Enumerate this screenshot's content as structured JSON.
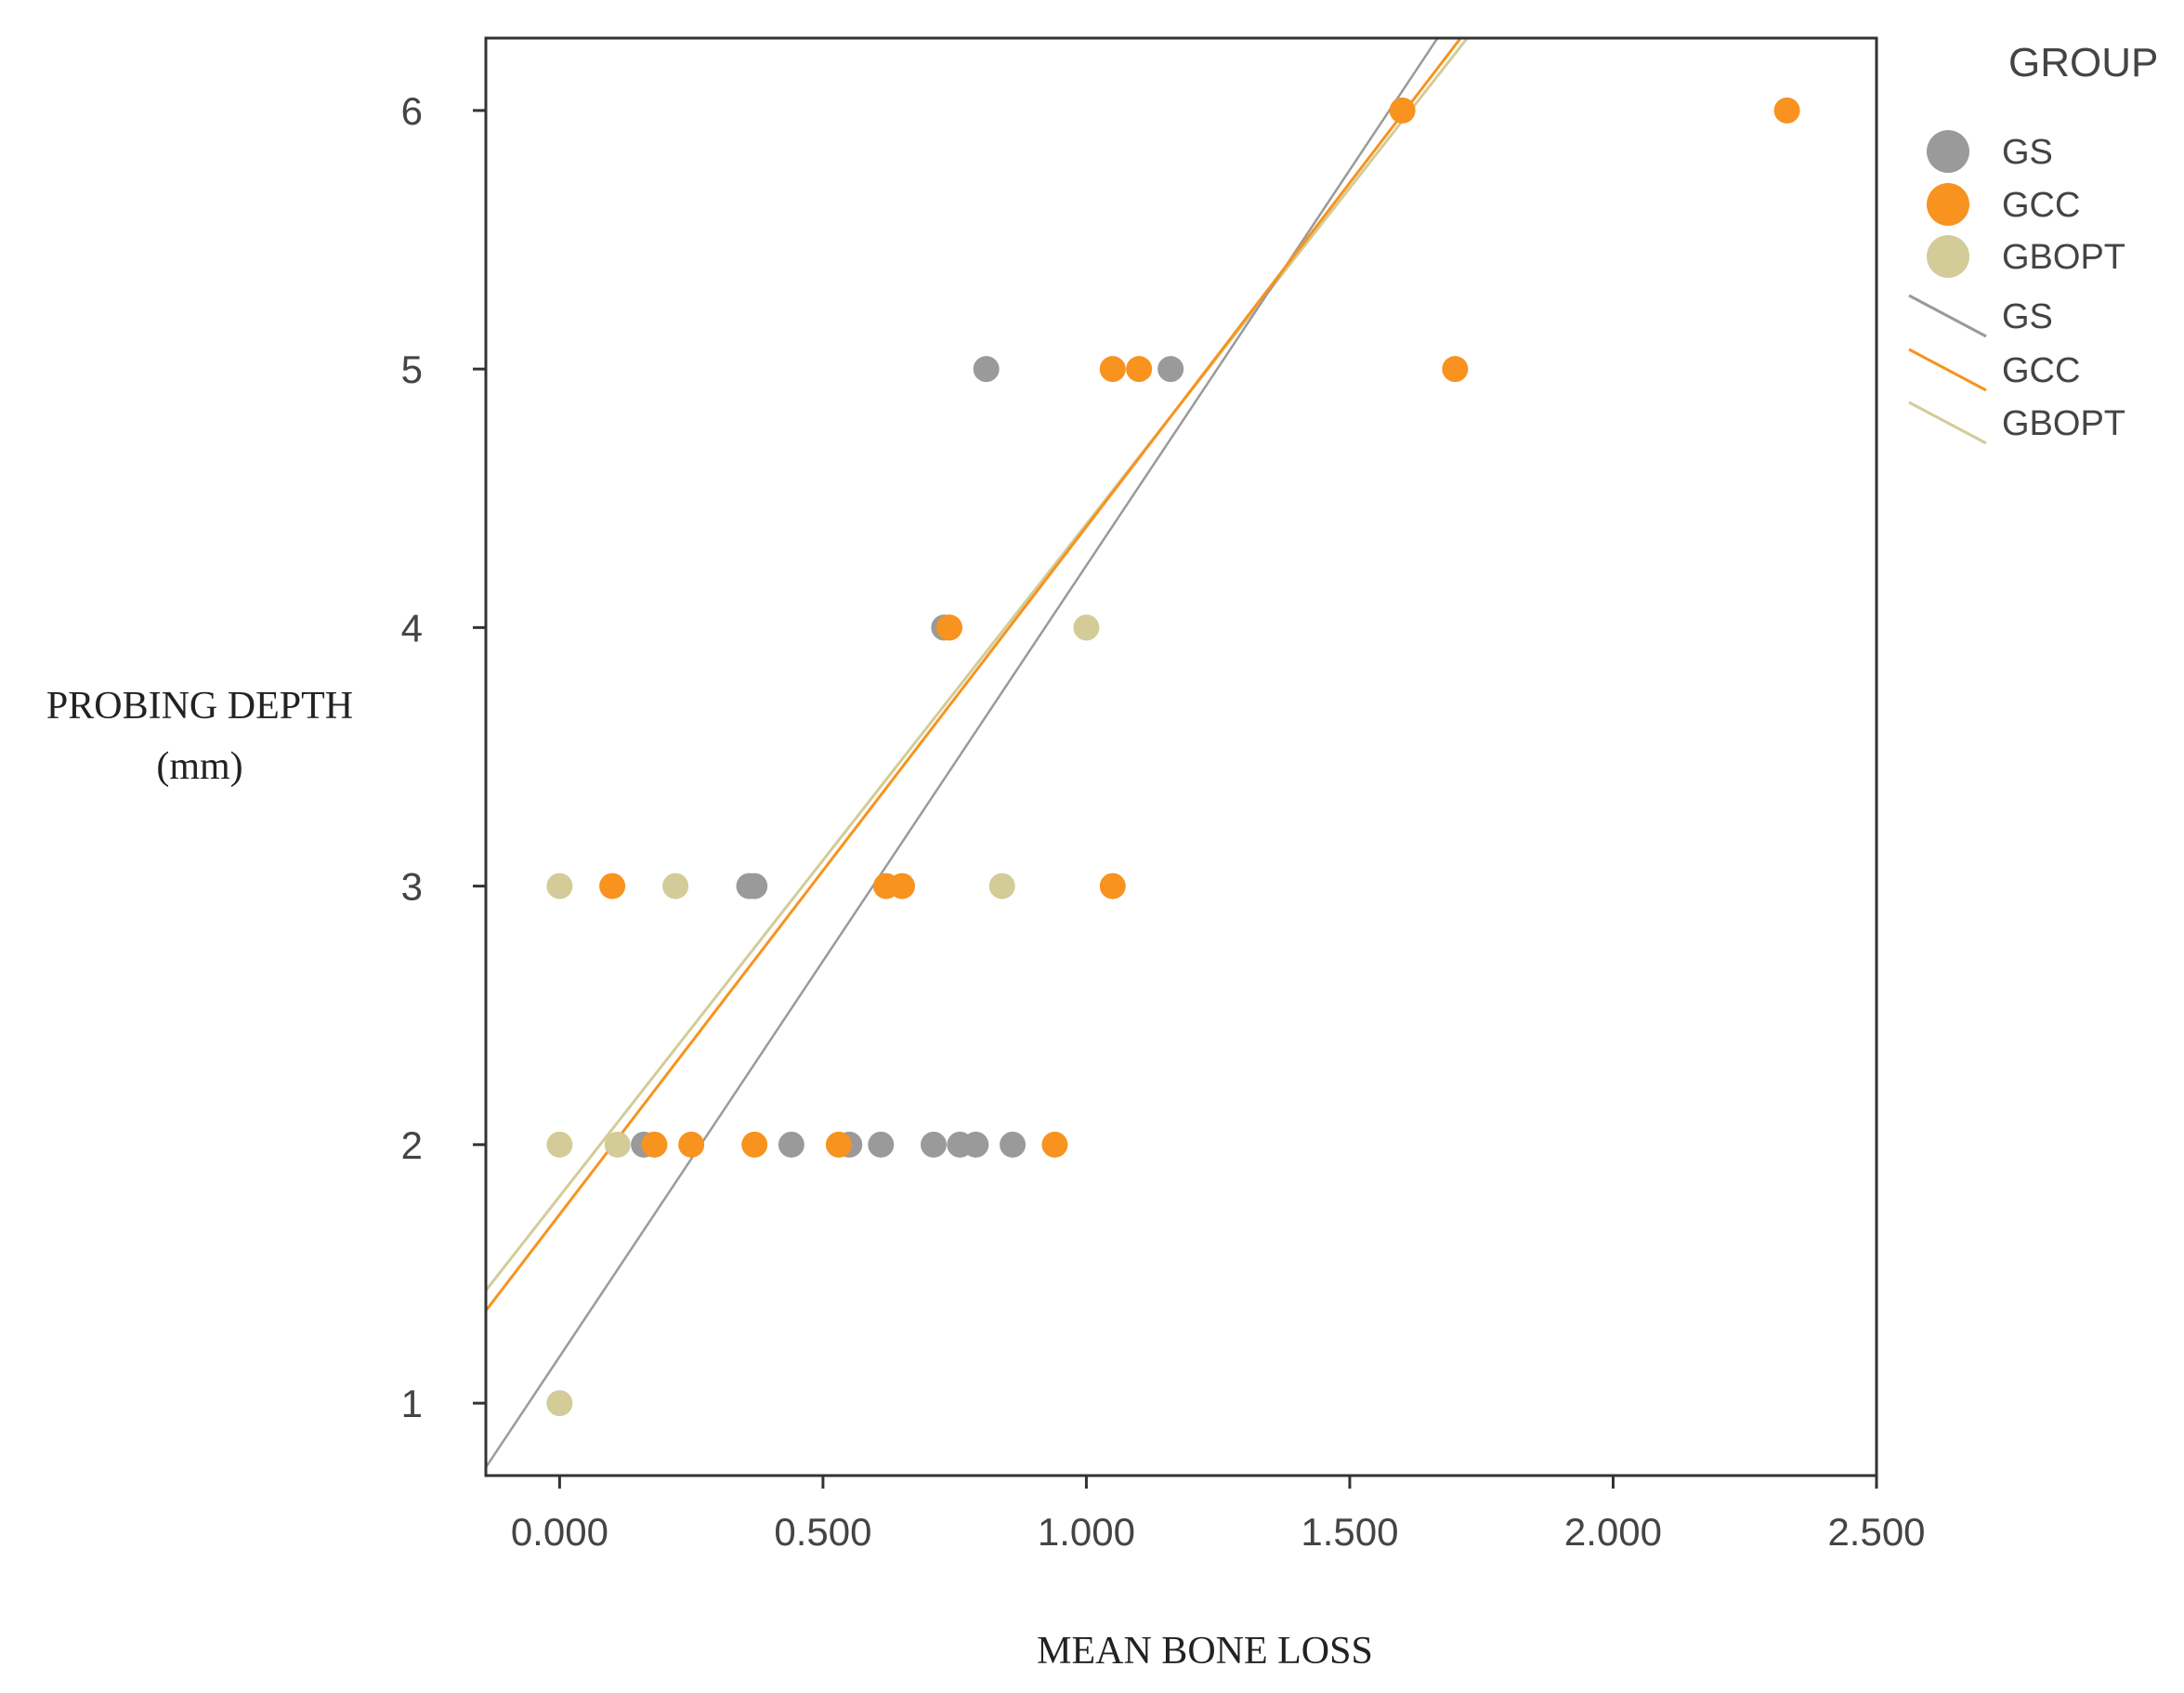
{
  "chart_data": {
    "type": "scatter",
    "xlabel": "MEAN BONE LOSS",
    "ylabel": "PROBING DEPTH",
    "ylabel_unit": "(mm)",
    "xlim": [
      -0.14,
      2.5
    ],
    "ylim": [
      0.72,
      6.28
    ],
    "x_ticks": [
      "0.000",
      "0.500",
      "1.000",
      "1.500",
      "2.000",
      "2.500"
    ],
    "x_tick_values": [
      0,
      0.5,
      1.0,
      1.5,
      2.0,
      2.5
    ],
    "y_ticks": [
      "1",
      "2",
      "3",
      "4",
      "5",
      "6"
    ],
    "y_tick_values": [
      1,
      2,
      3,
      4,
      5,
      6
    ],
    "grid": false,
    "legend": {
      "title": "GROUP",
      "position": "right",
      "marker_entries": [
        "GS",
        "GCC",
        "GBOPT"
      ],
      "line_entries": [
        "GS",
        "GCC",
        "GBOPT"
      ]
    },
    "series": [
      {
        "name": "GS",
        "color": "#9a9a9a",
        "points": [
          [
            0.81,
            5
          ],
          [
            1.16,
            5
          ],
          [
            0.73,
            4
          ],
          [
            0.36,
            3
          ],
          [
            0.37,
            3
          ],
          [
            0.16,
            2
          ],
          [
            0.44,
            2
          ],
          [
            0.55,
            2
          ],
          [
            0.61,
            2
          ],
          [
            0.71,
            2
          ],
          [
            0.76,
            2
          ],
          [
            0.79,
            2
          ],
          [
            0.86,
            2
          ]
        ],
        "fit": {
          "slope": 3.06,
          "intercept": 1.18
        }
      },
      {
        "name": "GCC",
        "color": "#f7931e",
        "points": [
          [
            1.6,
            6
          ],
          [
            2.33,
            6
          ],
          [
            1.05,
            5
          ],
          [
            1.1,
            5
          ],
          [
            1.7,
            5
          ],
          [
            0.74,
            4
          ],
          [
            0.1,
            3
          ],
          [
            0.62,
            3
          ],
          [
            0.65,
            3
          ],
          [
            1.05,
            3
          ],
          [
            0.18,
            2
          ],
          [
            0.25,
            2
          ],
          [
            0.37,
            2
          ],
          [
            0.53,
            2
          ],
          [
            0.94,
            2
          ]
        ],
        "fit": {
          "slope": 2.66,
          "intercept": 1.73
        }
      },
      {
        "name": "GBOPT",
        "color": "#d3cc98",
        "points": [
          [
            1.0,
            4
          ],
          [
            0.0,
            3
          ],
          [
            0.22,
            3
          ],
          [
            0.84,
            3
          ],
          [
            0.0,
            2
          ],
          [
            0.11,
            2
          ],
          [
            0.0,
            1
          ]
        ],
        "fit": {
          "slope": 2.6,
          "intercept": 1.8
        }
      }
    ]
  }
}
